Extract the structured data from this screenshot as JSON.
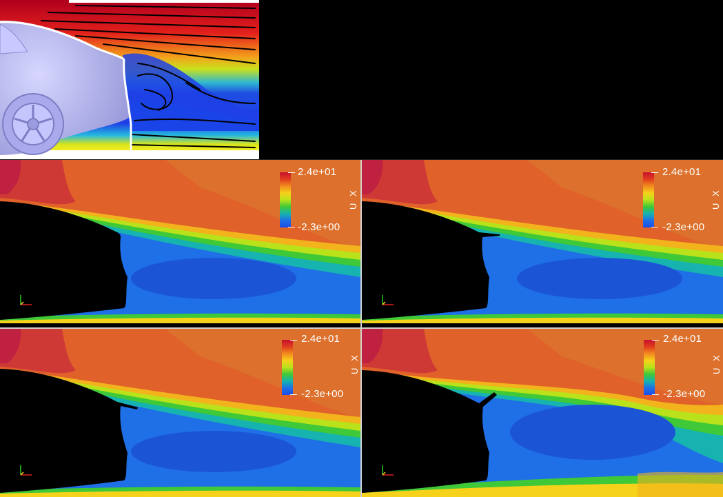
{
  "colorbar": {
    "max_label": "2.4e+01",
    "min_label": "-2.3e+00",
    "variable_label": "U X",
    "colors": [
      "#c8102e",
      "#e03c1e",
      "#f28b1e",
      "#f6d21a",
      "#b9e21b",
      "#3fc837",
      "#16b3b0",
      "#1f6fe6",
      "#1a4ee8"
    ]
  },
  "colors": {
    "background": "#000000",
    "car_body": "#b9b9f2",
    "freestream": "#e0622a",
    "wake": "#1c63d0"
  },
  "icons": [
    "axes-triad-icon"
  ]
}
